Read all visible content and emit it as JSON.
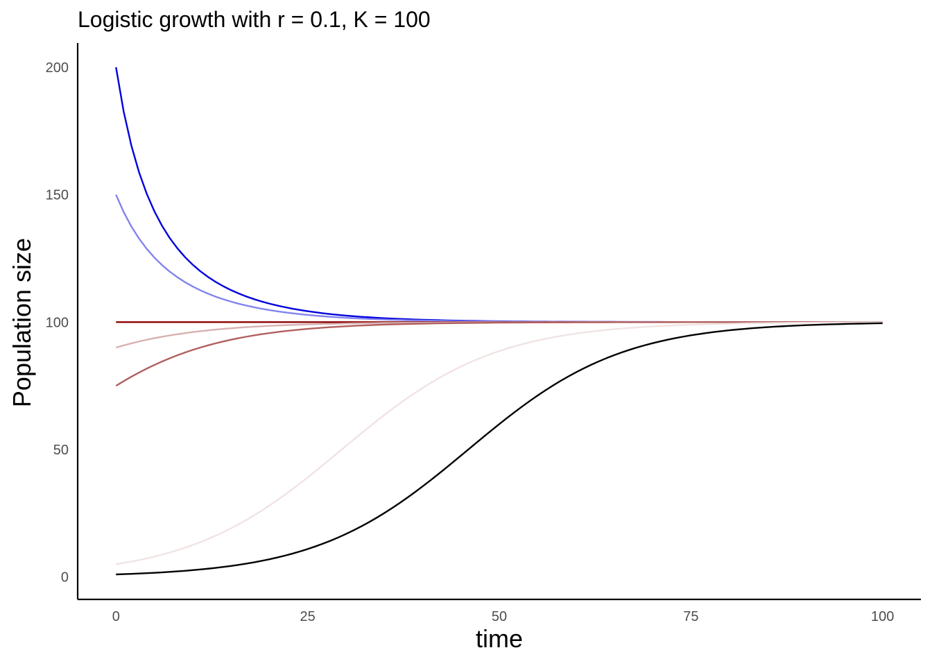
{
  "chart_data": {
    "type": "line",
    "title": "Logistic growth with r = 0.1, K = 100",
    "xlabel": "time",
    "ylabel": "Population size",
    "xlim": [
      -5,
      105
    ],
    "ylim": [
      -8.8,
      209.5
    ],
    "x_ticks": [
      0,
      25,
      50,
      75,
      100
    ],
    "y_ticks": [
      0,
      50,
      100,
      150,
      200
    ],
    "grid": false,
    "legend": "none",
    "model": {
      "r": 0.1,
      "K": 100,
      "t_start": 0,
      "t_end": 100,
      "step": 1
    },
    "series": [
      {
        "N0": 200,
        "color": "#0000dd"
      },
      {
        "N0": 150,
        "color": "#8383ee"
      },
      {
        "N0": 100,
        "color": "#8b0000"
      },
      {
        "N0": 90,
        "color": "#d8b0b0"
      },
      {
        "N0": 75,
        "color": "#b15f5f"
      },
      {
        "N0": 5,
        "color": "#f1e3e3"
      },
      {
        "N0": 1,
        "color": "#000000"
      }
    ]
  }
}
